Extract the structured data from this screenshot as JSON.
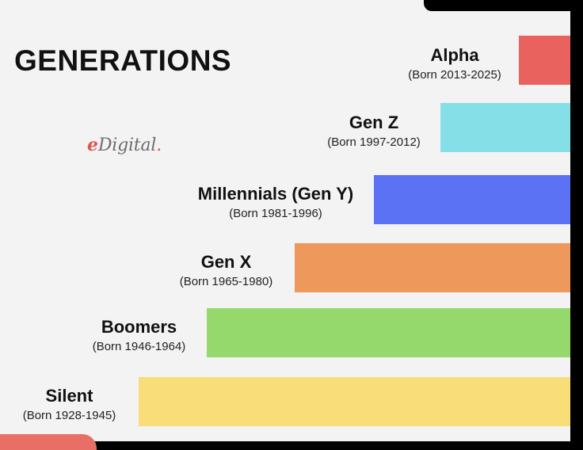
{
  "title": "GENERATIONS",
  "logo": {
    "prefix": "e",
    "text": "Digital",
    "suffix": "."
  },
  "generations": [
    {
      "name": "Alpha",
      "born": "(Born 2013-2025)",
      "color": "#ea625d"
    },
    {
      "name": "Gen Z",
      "born": "(Born 1997-2012)",
      "color": "#84dfe6"
    },
    {
      "name": "Millennials (Gen Y)",
      "born": "(Born 1981-1996)",
      "color": "#5b72f4"
    },
    {
      "name": "Gen X",
      "born": "(Born 1965-1980)",
      "color": "#ef985c"
    },
    {
      "name": "Boomers",
      "born": "(Born 1946-1964)",
      "color": "#95d96c"
    },
    {
      "name": "Silent",
      "born": "(Born 1928-1945)",
      "color": "#f9dd78"
    }
  ]
}
